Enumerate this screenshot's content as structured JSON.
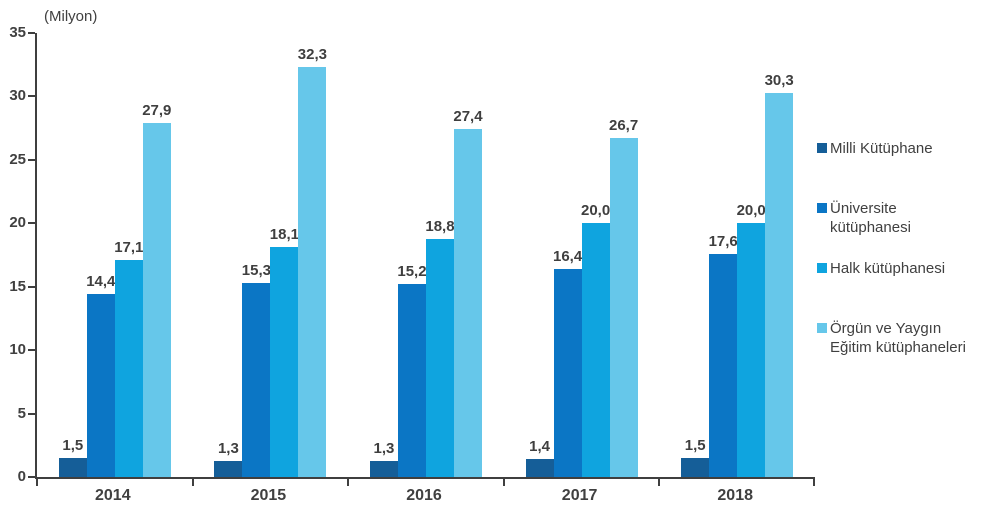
{
  "chart_data": {
    "type": "bar",
    "title": "",
    "unit_label": "(Milyon)",
    "text_color": "#404040",
    "axis_color": "#3f3f3f",
    "categories": [
      "2014",
      "2015",
      "2016",
      "2017",
      "2018"
    ],
    "series": [
      {
        "name": "Milli Kütüphane",
        "color": "#155E98",
        "values": [
          1.5,
          1.3,
          1.3,
          1.4,
          1.5
        ],
        "value_labels": [
          "1,5",
          "1,3",
          "1,3",
          "1,4",
          "1,5"
        ]
      },
      {
        "name": "Üniversite kütüphanesi",
        "color": "#0B76C5",
        "values": [
          14.4,
          15.3,
          15.2,
          16.4,
          17.6
        ],
        "value_labels": [
          "14,4",
          "15,3",
          "15,2",
          "16,4",
          "17,6"
        ]
      },
      {
        "name": "Halk kütüphanesi",
        "color": "#0FA4DF",
        "values": [
          17.1,
          18.1,
          18.8,
          20.0,
          20.0
        ],
        "value_labels": [
          "17,1",
          "18,1",
          "18,8",
          "20,0",
          "20,0"
        ]
      },
      {
        "name": "Örgün ve Yaygın Eğitim kütüphaneleri",
        "color": "#66C7EA",
        "values": [
          27.9,
          32.3,
          27.4,
          26.7,
          30.3
        ],
        "value_labels": [
          "27,9",
          "32,3",
          "27,4",
          "26,7",
          "30,3"
        ]
      }
    ],
    "y_axis": {
      "min": 0,
      "max": 35,
      "step": 5,
      "tick_labels": [
        "0",
        "5",
        "10",
        "15",
        "20",
        "25",
        "30",
        "35"
      ]
    },
    "legend": [
      {
        "label": "Milli Kütüphane",
        "color": "#155E98"
      },
      {
        "label": "Üniversite\nkütüphanesi",
        "color": "#0B76C5"
      },
      {
        "label": "Halk kütüphanesi",
        "color": "#0FA4DF"
      },
      {
        "label": "Örgün ve Yaygın\nEğitim kütüphaneleri",
        "color": "#66C7EA"
      }
    ],
    "layout": {
      "grid": false,
      "legend_position": "right"
    }
  }
}
